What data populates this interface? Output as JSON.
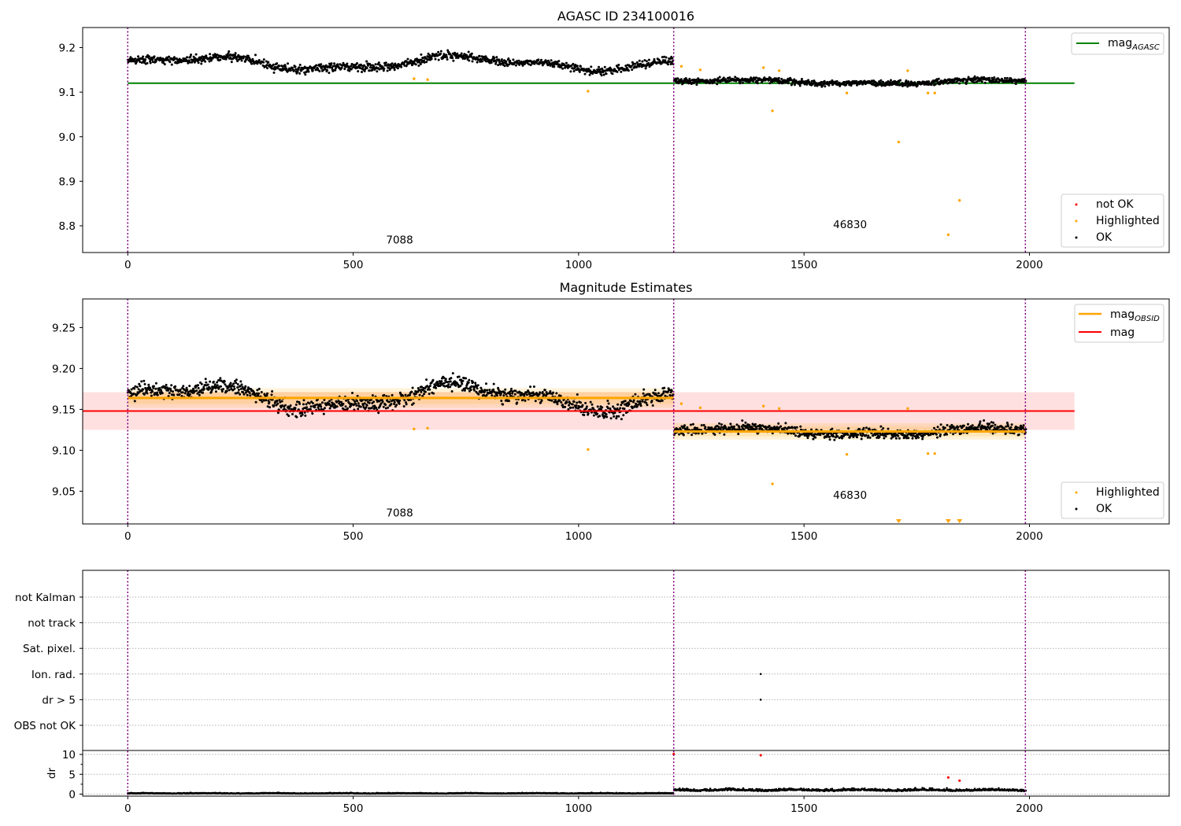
{
  "chart_data": [
    {
      "type": "scatter",
      "title": "AGASC ID 234100016",
      "xlim": [
        -100,
        2310
      ],
      "ylim": [
        8.74,
        9.245
      ],
      "xticks": [
        0,
        500,
        1000,
        1500,
        2000
      ],
      "yticks": [
        8.8,
        8.9,
        9.0,
        9.1,
        9.2
      ],
      "vlines": [
        0,
        1211,
        1991
      ],
      "obsid_labels": [
        {
          "text": "7088",
          "x": 603,
          "y": 8.76
        },
        {
          "text": "46830",
          "x": 1602,
          "y": 8.795
        }
      ],
      "series": [
        {
          "name": "mag_AGASC",
          "type": "line",
          "x": [
            0,
            2100
          ],
          "y": [
            9.12,
            9.12
          ],
          "color": "#008000"
        },
        {
          "name": "not OK",
          "color": "#ff0000",
          "points": []
        },
        {
          "name": "Highlighted",
          "color": "#ffa500",
          "points": [
            [
              635,
              9.13
            ],
            [
              665,
              9.128
            ],
            [
              1021,
              9.102
            ],
            [
              1228,
              9.158
            ],
            [
              1270,
              9.15
            ],
            [
              1410,
              9.155
            ],
            [
              1430,
              9.058
            ],
            [
              1445,
              9.148
            ],
            [
              1595,
              9.098
            ],
            [
              1710,
              8.988
            ],
            [
              1730,
              9.148
            ],
            [
              1775,
              9.098
            ],
            [
              1790,
              9.098
            ],
            [
              1820,
              8.78
            ],
            [
              1845,
              8.857
            ]
          ]
        },
        {
          "name": "OK",
          "color": "#000000",
          "segments": [
            {
              "x0": 0,
              "x1": 1210,
              "n": 1150,
              "level": 9.165,
              "spread": 0.012,
              "wave": 0.013
            },
            {
              "x0": 1212,
              "x1": 1992,
              "n": 780,
              "level": 9.123,
              "spread": 0.008,
              "wave": 0.004
            }
          ]
        }
      ],
      "legend": {
        "position": "lower-right",
        "entries": [
          "not OK",
          "Highlighted",
          "OK"
        ]
      },
      "legend2": {
        "position": "upper-right",
        "entries": [
          "mag",
          "AGASC"
        ]
      }
    },
    {
      "type": "scatter",
      "title": "Magnitude Estimates",
      "xlim": [
        -100,
        2310
      ],
      "ylim": [
        9.01,
        9.285
      ],
      "xticks": [
        0,
        500,
        1000,
        1500,
        2000
      ],
      "yticks": [
        9.05,
        9.1,
        9.15,
        9.2,
        9.25
      ],
      "vlines": [
        0,
        1211,
        1991
      ],
      "obsid_labels": [
        {
          "text": "7088",
          "x": 603,
          "y": 9.019
        },
        {
          "text": "46830",
          "x": 1602,
          "y": 9.041
        }
      ],
      "bands": [
        {
          "name": "mag",
          "x0": -100,
          "x1": 2100,
          "center": 9.148,
          "half": 0.023,
          "color": "#ff0000"
        },
        {
          "name": "mag_OBSID",
          "x0": 0,
          "x1": 1211,
          "center": 9.164,
          "half": 0.012,
          "color": "#ffa500"
        },
        {
          "name": "mag_OBSID",
          "x0": 1211,
          "x1": 1991,
          "center": 9.123,
          "half": 0.01,
          "color": "#ffa500"
        }
      ],
      "series": [
        {
          "name": "mag_OBSID",
          "type": "step",
          "color": "#ffa500",
          "steps": [
            [
              0,
              1211,
              9.164
            ],
            [
              1211,
              1991,
              9.123
            ]
          ]
        },
        {
          "name": "mag",
          "type": "line",
          "color": "#ff0000",
          "x": [
            -100,
            2100
          ],
          "y": [
            9.148,
            9.148
          ]
        },
        {
          "name": "Highlighted",
          "color": "#ffa500",
          "points": [
            [
              635,
              9.126
            ],
            [
              665,
              9.127
            ],
            [
              1021,
              9.101
            ],
            [
              1228,
              9.157
            ],
            [
              1270,
              9.152
            ],
            [
              1410,
              9.154
            ],
            [
              1430,
              9.059
            ],
            [
              1445,
              9.151
            ],
            [
              1595,
              9.095
            ],
            [
              1730,
              9.151
            ],
            [
              1775,
              9.096
            ],
            [
              1790,
              9.096
            ]
          ]
        },
        {
          "name": "Highlighted (off-scale)",
          "color": "#ffa500",
          "markers": [
            1710,
            1820,
            1845
          ]
        },
        {
          "name": "OK",
          "color": "#000000",
          "segments": [
            {
              "x0": 0,
              "x1": 1210,
              "n": 1150,
              "level": 9.165,
              "spread": 0.012,
              "wave": 0.013
            },
            {
              "x0": 1212,
              "x1": 1992,
              "n": 780,
              "level": 9.123,
              "spread": 0.008,
              "wave": 0.004
            }
          ]
        }
      ],
      "legend": {
        "position": "lower-right",
        "entries": [
          "Highlighted",
          "OK"
        ]
      },
      "legend2": {
        "position": "upper-right",
        "entries": [
          "mag",
          "OBSID",
          "mag"
        ]
      }
    },
    {
      "type": "scatter",
      "title": "",
      "xlim": [
        -100,
        2310
      ],
      "xticks": [
        0,
        500,
        1000,
        1500,
        2000
      ],
      "vlines": [
        0,
        1211,
        1991
      ],
      "flag_rows": [
        "not Kalman",
        "not track",
        "Sat. pixel.",
        "Ion. rad.",
        "dr > 5",
        "OBS not OK"
      ],
      "flag_points": [
        {
          "row": "Ion. rad.",
          "x": 1404
        },
        {
          "row": "dr > 5",
          "x": 1404
        }
      ],
      "dr": {
        "ylabel": "dr",
        "ylim": [
          -0.5,
          11
        ],
        "yticks": [
          0,
          5,
          10
        ],
        "minor_yticks": [
          2.5,
          7.5
        ],
        "outliers": [
          [
            1211,
            10.1
          ],
          [
            1404,
            9.8
          ],
          [
            1820,
            4.2
          ],
          [
            1845,
            3.4
          ]
        ],
        "segments": [
          {
            "x0": 0,
            "x1": 1210,
            "n": 1150,
            "level": 0.15,
            "spread": 0.1
          },
          {
            "x0": 1212,
            "x1": 1992,
            "n": 780,
            "level": 0.85,
            "spread": 0.35
          }
        ]
      }
    }
  ],
  "legend_text": {
    "top_mag": "mag",
    "top_mag_sub": "AGASC",
    "mid_mag_obsid": "mag",
    "mid_mag_obsid_sub": "OBSID",
    "mid_mag": "mag",
    "not_ok": "not OK",
    "highlighted": "Highlighted",
    "ok": "OK"
  }
}
